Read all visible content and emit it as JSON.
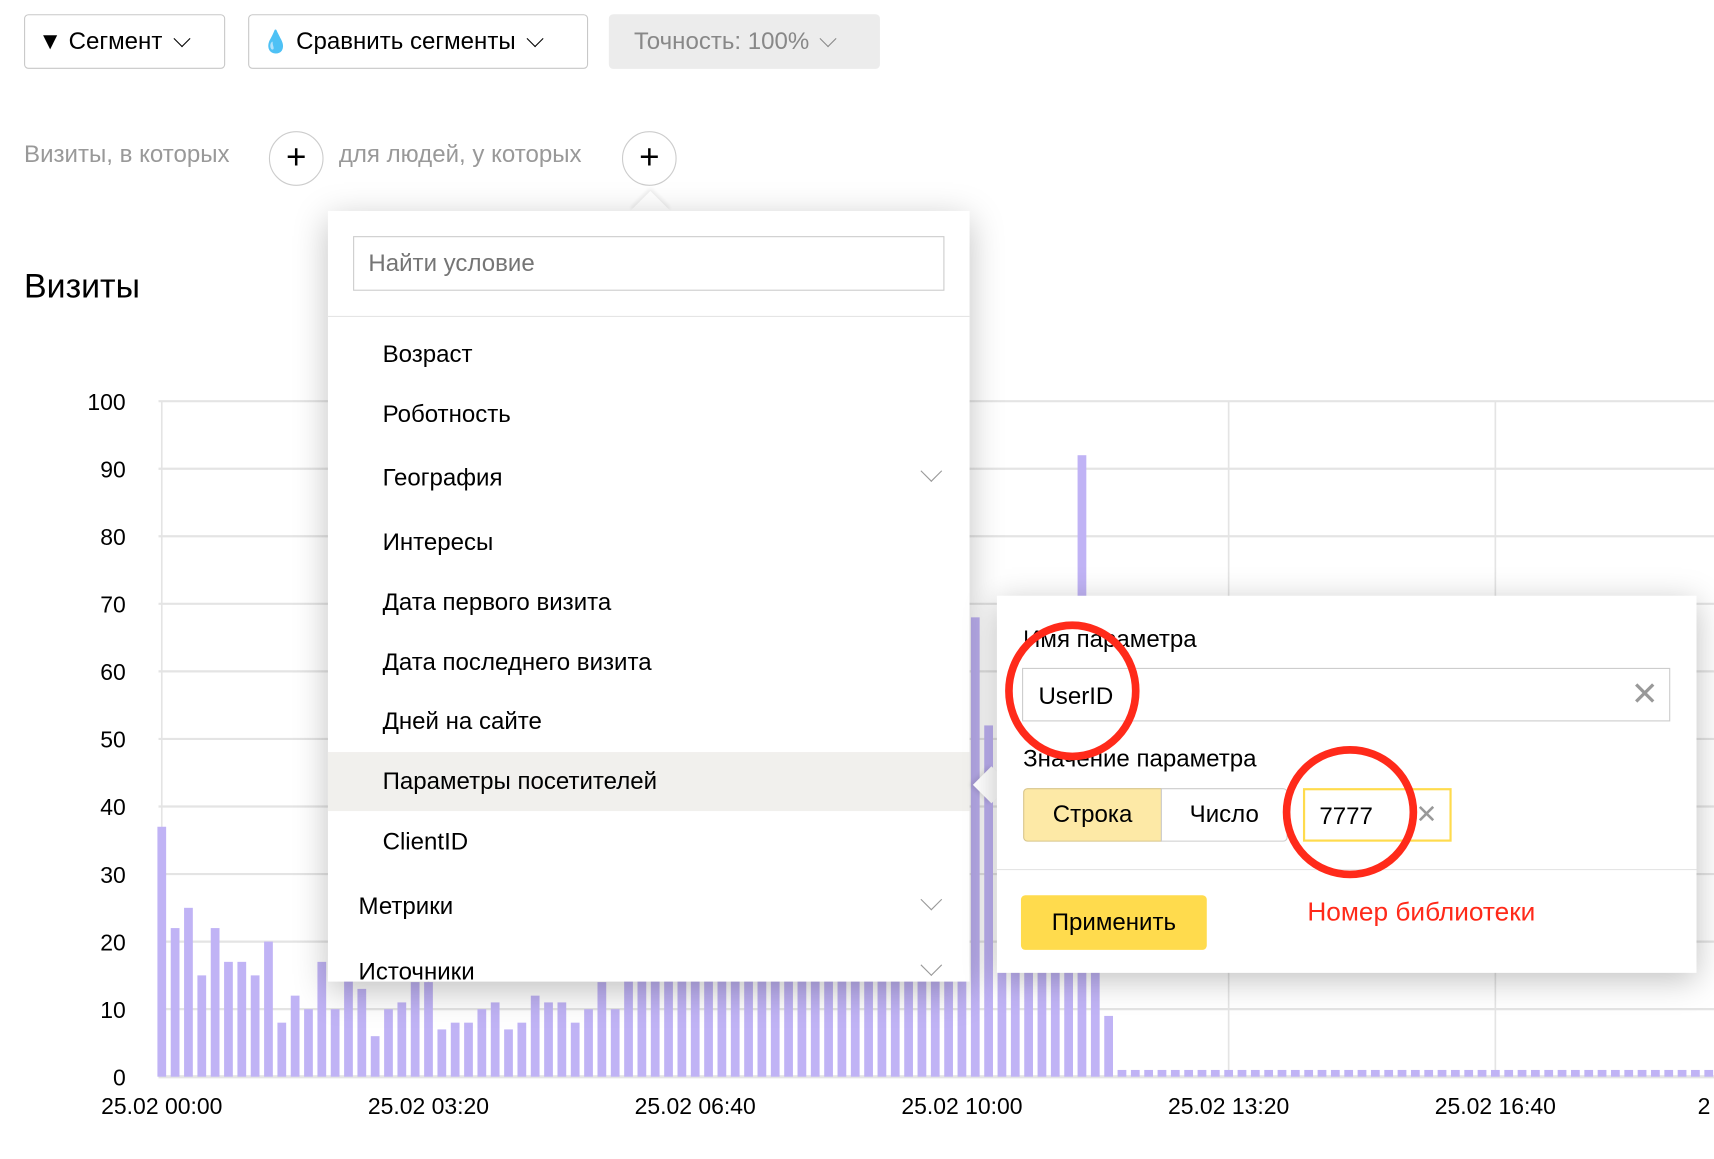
{
  "toolbar": {
    "segment": "Сегмент",
    "compare": "Сравнить сегменты",
    "accuracy": "Точность: 100%"
  },
  "conditions": {
    "visits": "Визиты, в которых",
    "people": "для людей, у которых",
    "add": "+"
  },
  "chart_title": "Визиты",
  "dropdown": {
    "search_placeholder": "Найти условие",
    "items": [
      {
        "label": "Возраст"
      },
      {
        "label": "Роботность"
      },
      {
        "label": "География",
        "expandable": true
      },
      {
        "label": "Интересы"
      },
      {
        "label": "Дата первого визита"
      },
      {
        "label": "Дата последнего визита"
      },
      {
        "label": "Дней на сайте"
      },
      {
        "label": "Параметры посетителей",
        "selected": true
      },
      {
        "label": "ClientID"
      }
    ],
    "groups": [
      {
        "label": "Метрики"
      },
      {
        "label": "Источники"
      }
    ]
  },
  "param_popup": {
    "name_label": "Имя параметра",
    "name_value": "UserID",
    "value_label": "Значение параметра",
    "type_options": [
      "Строка",
      "Число"
    ],
    "type_selected": "Строка",
    "value": "7777",
    "apply": "Применить"
  },
  "annotation": {
    "text": "Номер библиотеки",
    "color": "#ff2a1a"
  },
  "chart_data": {
    "type": "bar",
    "title": "Визиты",
    "ylim": [
      0,
      100
    ],
    "yticks": [
      0,
      10,
      20,
      30,
      40,
      50,
      60,
      70,
      80,
      90,
      100
    ],
    "xticks": [
      "25.02 00:00",
      "25.02 03:20",
      "25.02 06:40",
      "25.02 10:00",
      "25.02 13:20",
      "25.02 16:40",
      "2"
    ],
    "interval_minutes": 10,
    "color": "#c0b3f5",
    "values": [
      37,
      22,
      25,
      15,
      22,
      17,
      17,
      15,
      20,
      8,
      12,
      10,
      17,
      10,
      15,
      13,
      6,
      10,
      11,
      14,
      14,
      7,
      8,
      8,
      10,
      11,
      7,
      8,
      12,
      11,
      11,
      8,
      10,
      14,
      10,
      40,
      40,
      40,
      40,
      40,
      40,
      40,
      40,
      40,
      40,
      40,
      40,
      40,
      40,
      40,
      40,
      40,
      40,
      40,
      40,
      40,
      40,
      40,
      40,
      40,
      40,
      68,
      52,
      45,
      45,
      45,
      45,
      45,
      45,
      92,
      30,
      9,
      1,
      1,
      1,
      1,
      1,
      1,
      1,
      1,
      1,
      1,
      1,
      1,
      1,
      1,
      1,
      1,
      1,
      1,
      1,
      1,
      1,
      1,
      1,
      1,
      1,
      1,
      1,
      1,
      1,
      1,
      1,
      1,
      1,
      1,
      1,
      1,
      1,
      1,
      1,
      1,
      1,
      1,
      1,
      1,
      1,
      1
    ]
  }
}
